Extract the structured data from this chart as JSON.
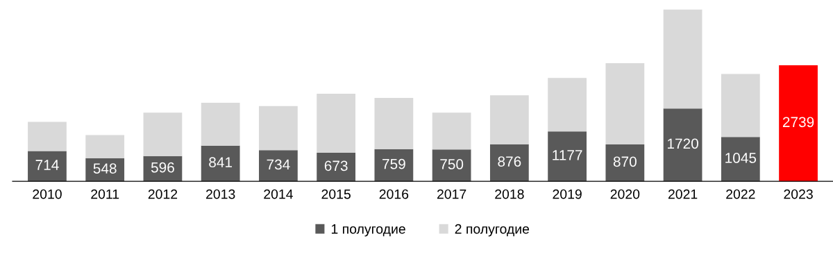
{
  "chart_data": {
    "type": "bar",
    "stacked": true,
    "legend": "bottom",
    "grid": false,
    "categories": [
      "2010",
      "2011",
      "2012",
      "2013",
      "2014",
      "2015",
      "2016",
      "2017",
      "2018",
      "2019",
      "2020",
      "2021",
      "2022",
      "2023"
    ],
    "series": [
      {
        "name": "1 полугодие",
        "color": "#595959",
        "colors": [
          "#595959",
          "#595959",
          "#595959",
          "#595959",
          "#595959",
          "#595959",
          "#595959",
          "#595959",
          "#595959",
          "#595959",
          "#595959",
          "#595959",
          "#595959",
          "#ff0000"
        ],
        "values": [
          714,
          548,
          596,
          841,
          734,
          673,
          759,
          750,
          876,
          1177,
          870,
          1720,
          1045,
          2739
        ],
        "value_labels": [
          "714",
          "548",
          "596",
          "841",
          "734",
          "673",
          "759",
          "750",
          "876",
          "1177",
          "870",
          "1720",
          "1045",
          "2739"
        ]
      },
      {
        "name": "2 полугодие",
        "color": "#d9d9d9",
        "values": [
          690,
          544,
          1023,
          1012,
          1041,
          1394,
          1211,
          869,
          1152,
          1261,
          1919,
          2336,
          1490,
          null
        ]
      }
    ]
  }
}
